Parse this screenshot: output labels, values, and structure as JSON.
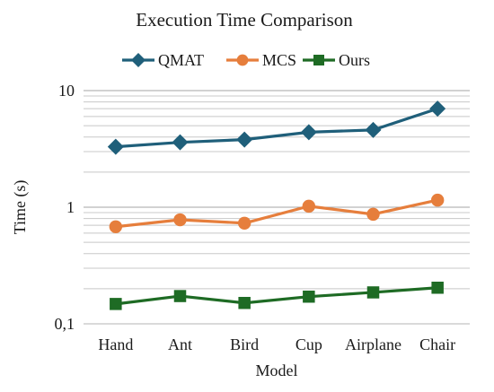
{
  "chart_data": {
    "type": "line",
    "title": "Execution Time Comparison",
    "xlabel": "Model",
    "ylabel": "Time (s)",
    "y_scale": "log",
    "ylim": [
      0.1,
      10
    ],
    "y_ticks": [
      {
        "value": 10,
        "label": "10"
      },
      {
        "value": 1,
        "label": "1"
      },
      {
        "value": 0.1,
        "label": "0,1"
      }
    ],
    "grid": "horizontal",
    "legend_position": "top",
    "categories": [
      "Hand",
      "Ant",
      "Bird",
      "Cup",
      "Airplane",
      "Chair"
    ],
    "series": [
      {
        "name": "QMAT",
        "color": "#1f5f7a",
        "marker": "diamond",
        "values": [
          3.3,
          3.6,
          3.8,
          4.4,
          4.6,
          7.0
        ]
      },
      {
        "name": "MCS",
        "color": "#e67e3c",
        "marker": "circle",
        "values": [
          0.68,
          0.78,
          0.73,
          1.02,
          0.87,
          1.15
        ]
      },
      {
        "name": "Ours",
        "color": "#1e6b24",
        "marker": "square",
        "values": [
          0.148,
          0.173,
          0.151,
          0.171,
          0.186,
          0.204
        ]
      }
    ]
  }
}
